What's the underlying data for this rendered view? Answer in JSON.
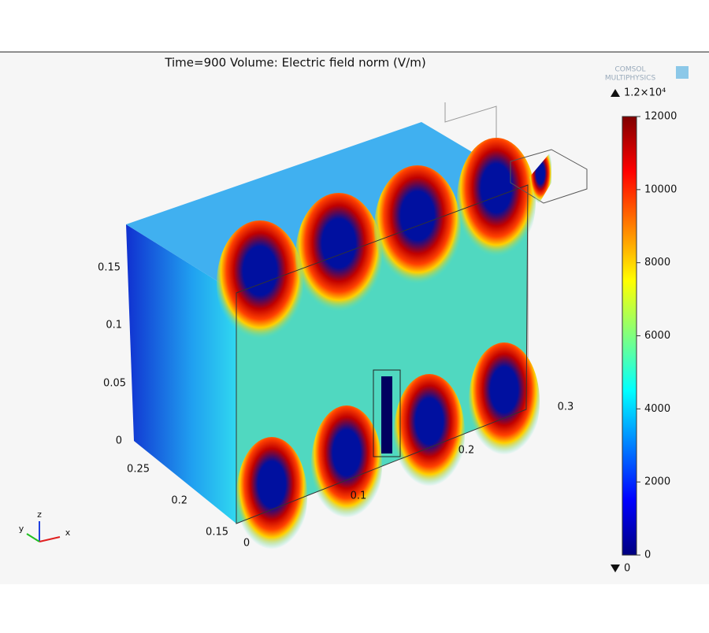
{
  "title": "Time=900  Volume: Electric field norm (V/m)",
  "logo": {
    "line1": "COMSOL",
    "line2": "MULTIPHYSICS"
  },
  "colorbar": {
    "max_label": "1.2×10⁴",
    "min_label": "0",
    "ticks": [
      0,
      2000,
      4000,
      6000,
      8000,
      10000,
      12000
    ]
  },
  "axes": {
    "z_ticks": [
      "0",
      "0.05",
      "0.1",
      "0.15"
    ],
    "x_ticks": [
      "0",
      "0.1",
      "0.2",
      "0.3"
    ],
    "y_ticks": [
      "0.15",
      "0.2",
      "0.25"
    ],
    "triad": {
      "x": "x",
      "y": "y",
      "z": "z"
    }
  }
}
